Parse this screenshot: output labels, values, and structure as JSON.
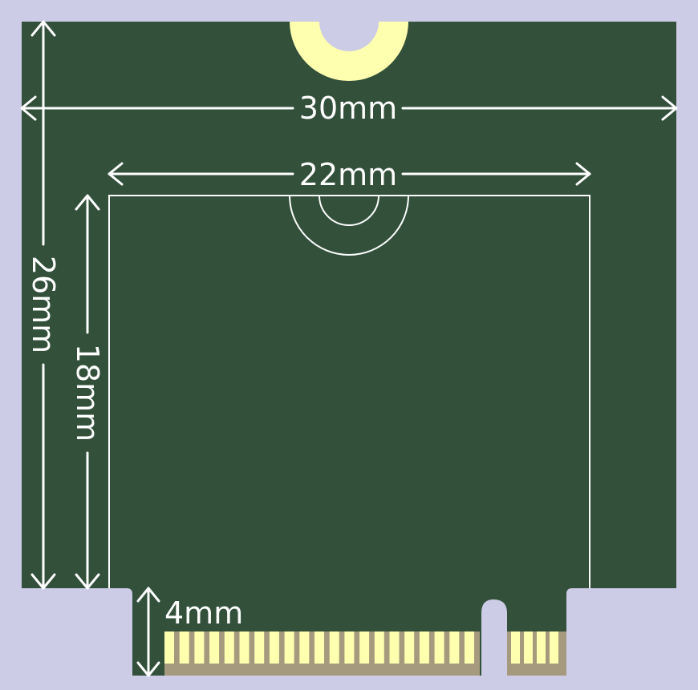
{
  "dimensions": {
    "board_width": "30mm",
    "board_height": "26mm",
    "module_width": "22mm",
    "module_height": "18mm",
    "connector_height": "4mm"
  },
  "colors": {
    "background": "#cccce6",
    "board": "#32503a",
    "silkscreen": "#ffffff",
    "copper_pad": "#ffffb0",
    "connector_base": "#a69a7e"
  },
  "connector": {
    "main_pin_count": 21,
    "key_side_pin_count": 4
  }
}
